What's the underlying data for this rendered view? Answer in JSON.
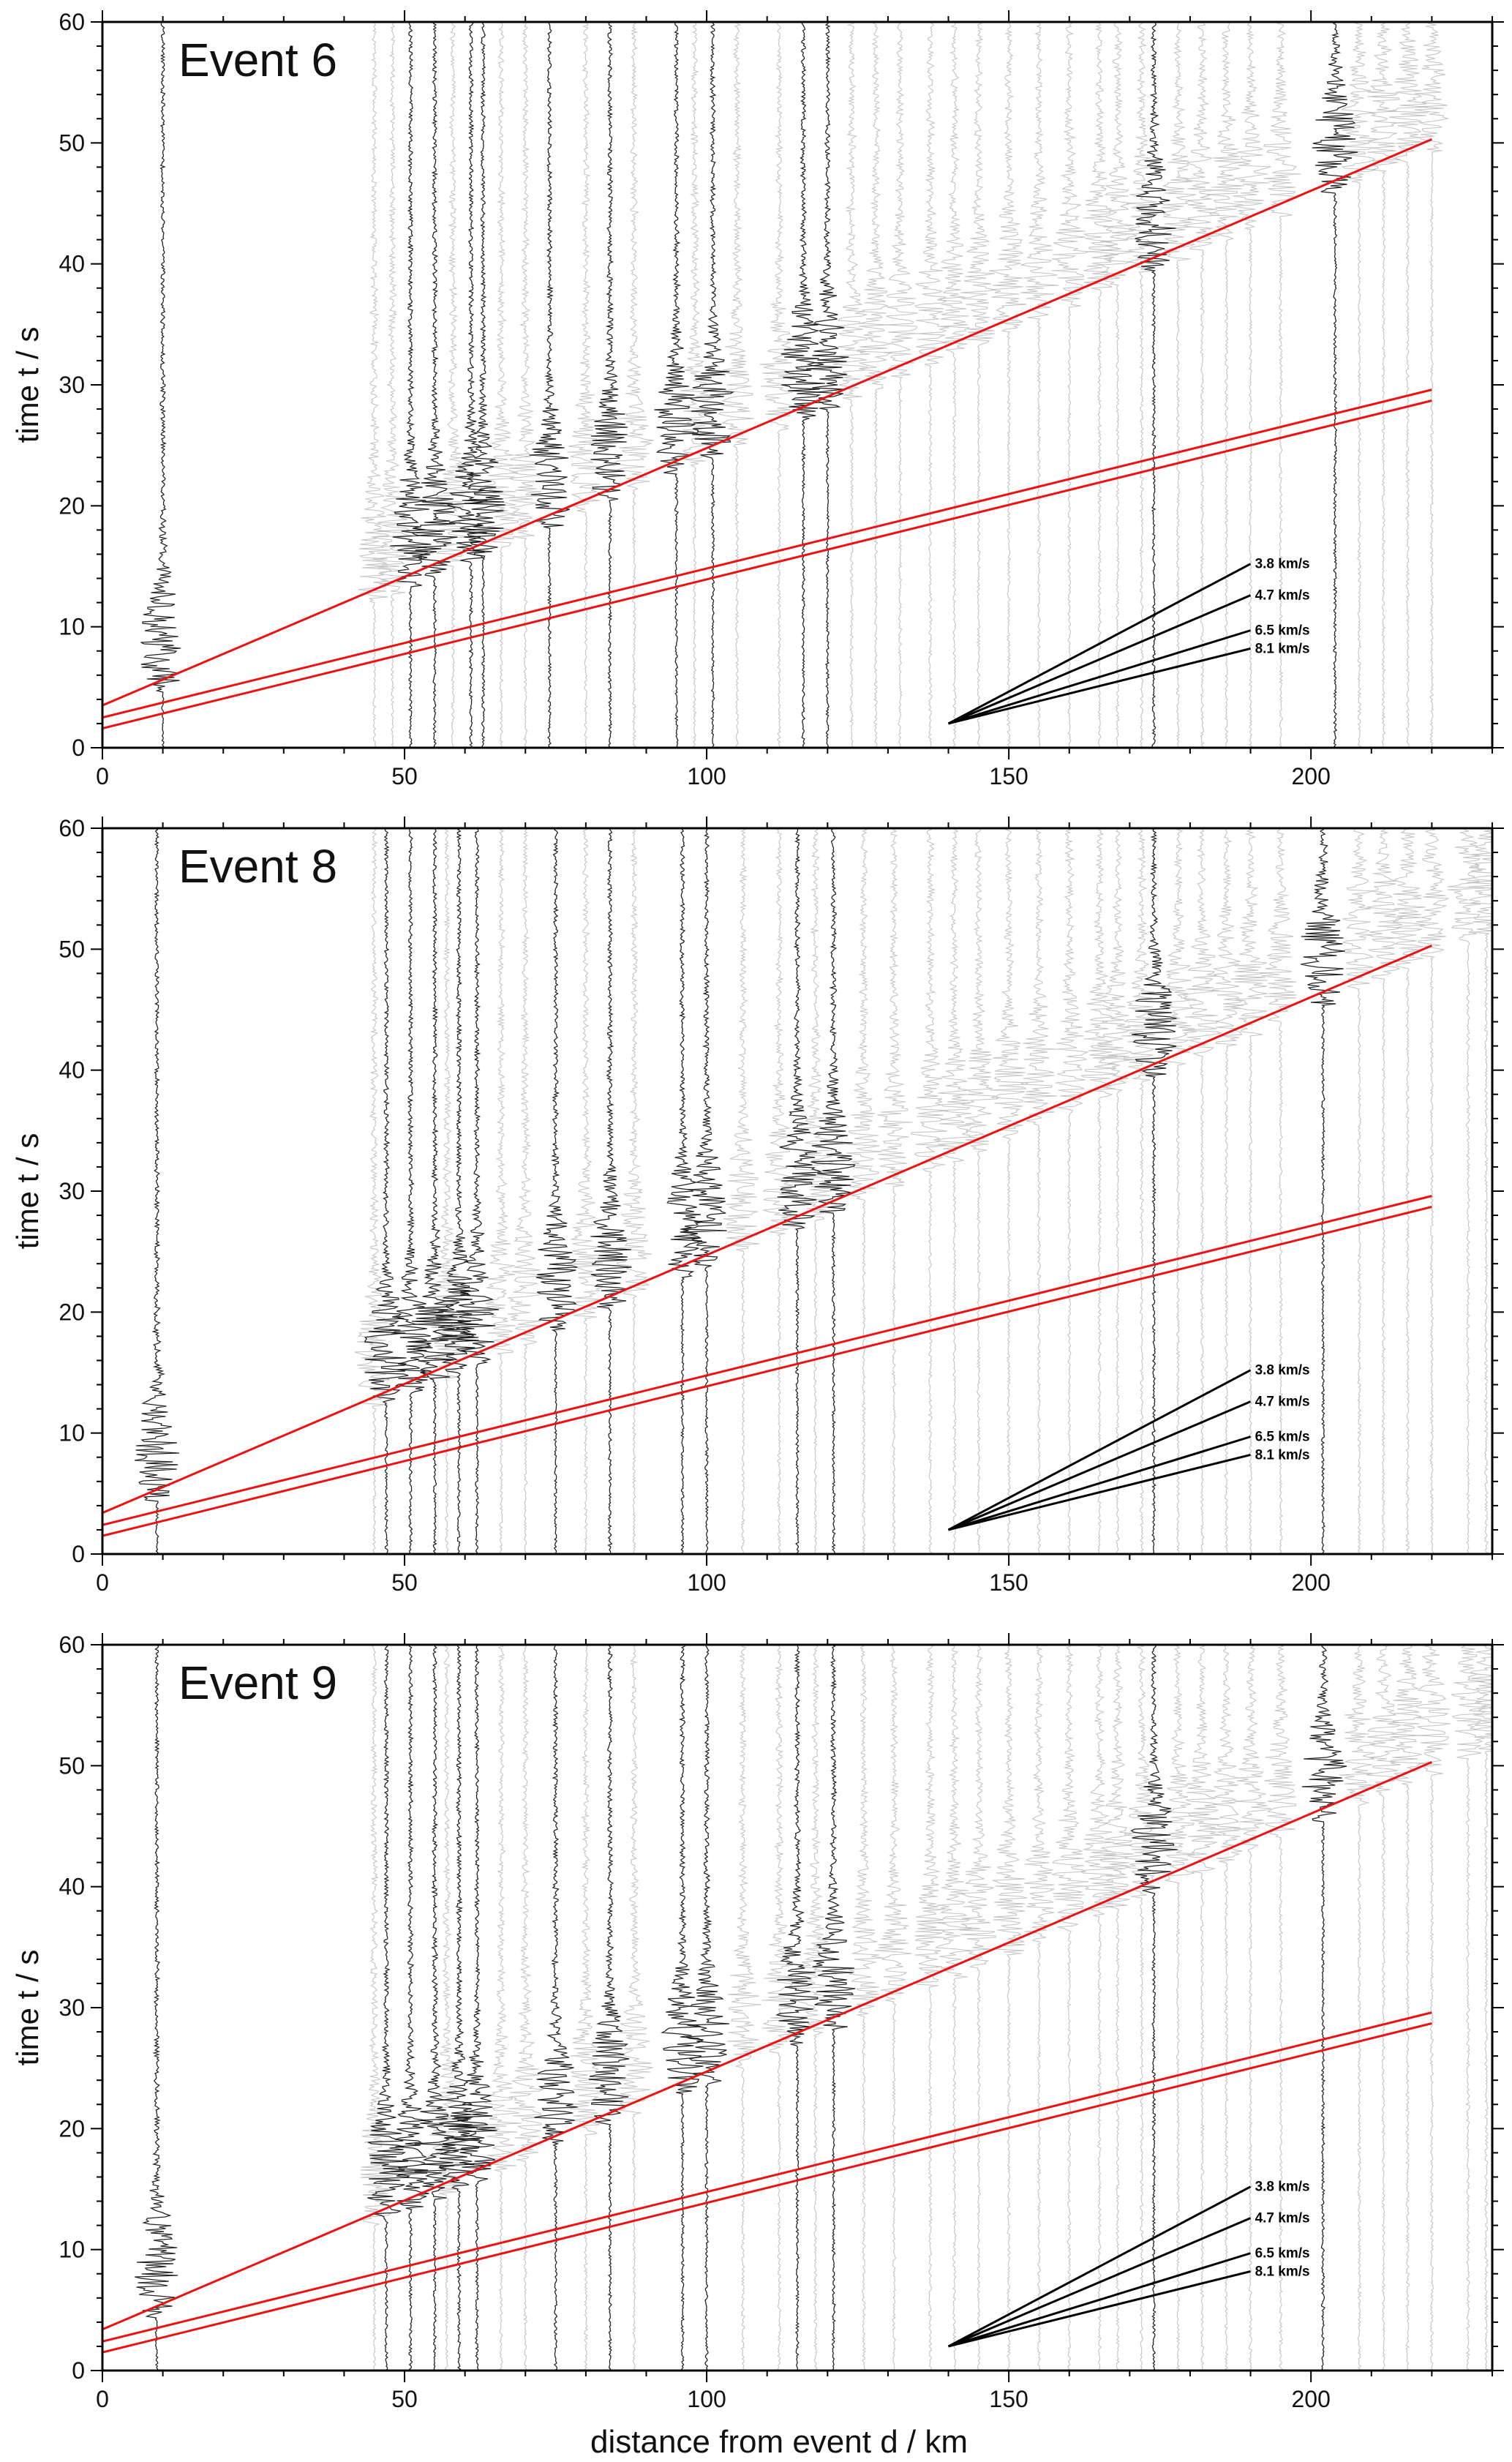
{
  "figure": {
    "x_axis_label": "distance from event d / km",
    "y_axis_label": "time t / s",
    "colors": {
      "red_line": "#ee1111",
      "trace_strong": "#111111",
      "trace_weak": "#bdbdbd",
      "velocity_line": "#000000"
    }
  },
  "chart_data": [
    {
      "type": "line",
      "title": "Event 6",
      "xlabel": "",
      "ylabel": "time t / s",
      "xlim": [
        0,
        230
      ],
      "ylim": [
        0,
        60
      ],
      "x_ticks": [
        "0",
        "50",
        "100",
        "150",
        "200"
      ],
      "y_ticks": [
        "0",
        "10",
        "20",
        "30",
        "40",
        "50",
        "60"
      ],
      "series": [
        {
          "x": [
            0,
            220
          ],
          "y": [
            3.5,
            50.3
          ]
        },
        {
          "x": [
            0,
            220
          ],
          "y": [
            2.5,
            29.6
          ]
        },
        {
          "x": [
            0,
            220
          ],
          "y": [
            1.6,
            28.7
          ]
        }
      ],
      "velocity_key": [
        {
          "label": "3.8 km/s",
          "x": [
            140,
            190
          ],
          "y": [
            2,
            15.2
          ]
        },
        {
          "label": "4.7 km/s",
          "x": [
            140,
            190
          ],
          "y": [
            2,
            12.6
          ]
        },
        {
          "label": "6.5 km/s",
          "x": [
            140,
            190
          ],
          "y": [
            2,
            9.7
          ]
        },
        {
          "label": "8.1 km/s",
          "x": [
            140,
            190
          ],
          "y": [
            2,
            8.2
          ]
        }
      ],
      "traces_strong": [
        10,
        51,
        55,
        61,
        63,
        74,
        84,
        95,
        101,
        116,
        120,
        174,
        204
      ],
      "traces_weak": [
        45,
        48,
        58,
        66,
        70,
        80,
        88,
        98,
        105,
        112,
        124,
        128,
        132,
        137,
        141,
        145,
        150,
        155,
        160,
        165,
        168,
        172,
        178,
        182,
        186,
        190,
        195,
        208,
        212,
        216,
        220
      ]
    },
    {
      "type": "line",
      "title": "Event 8",
      "xlabel": "",
      "ylabel": "time t / s",
      "xlim": [
        0,
        230
      ],
      "ylim": [
        0,
        60
      ],
      "x_ticks": [
        "0",
        "50",
        "100",
        "150",
        "200"
      ],
      "y_ticks": [
        "0",
        "10",
        "20",
        "30",
        "40",
        "50",
        "60"
      ],
      "series": [
        {
          "x": [
            0,
            220
          ],
          "y": [
            3.4,
            50.3
          ]
        },
        {
          "x": [
            0,
            220
          ],
          "y": [
            2.4,
            29.6
          ]
        },
        {
          "x": [
            0,
            220
          ],
          "y": [
            1.5,
            28.7
          ]
        }
      ],
      "velocity_key": [
        {
          "label": "3.8 km/s",
          "x": [
            140,
            190
          ],
          "y": [
            2,
            15.2
          ]
        },
        {
          "label": "4.7 km/s",
          "x": [
            140,
            190
          ],
          "y": [
            2,
            12.6
          ]
        },
        {
          "label": "6.5 km/s",
          "x": [
            140,
            190
          ],
          "y": [
            2,
            9.7
          ]
        },
        {
          "label": "8.1 km/s",
          "x": [
            140,
            190
          ],
          "y": [
            2,
            8.2
          ]
        }
      ],
      "traces_strong": [
        9,
        47,
        51,
        55,
        59,
        62,
        75,
        84,
        96,
        100,
        115,
        121,
        174,
        202
      ],
      "traces_weak": [
        45,
        57,
        66,
        70,
        80,
        88,
        106,
        112,
        118,
        126,
        131,
        137,
        141,
        145,
        150,
        155,
        160,
        165,
        168,
        172,
        178,
        182,
        186,
        190,
        195,
        208,
        212,
        216,
        220,
        226,
        229
      ]
    },
    {
      "type": "line",
      "title": "Event 9",
      "xlabel": "distance from event d / km",
      "ylabel": "time t / s",
      "xlim": [
        0,
        230
      ],
      "ylim": [
        0,
        60
      ],
      "x_ticks": [
        "0",
        "50",
        "100",
        "150",
        "200"
      ],
      "y_ticks": [
        "0",
        "10",
        "20",
        "30",
        "40",
        "50",
        "60"
      ],
      "series": [
        {
          "x": [
            0,
            220
          ],
          "y": [
            3.4,
            50.3
          ]
        },
        {
          "x": [
            0,
            220
          ],
          "y": [
            2.4,
            29.6
          ]
        },
        {
          "x": [
            0,
            220
          ],
          "y": [
            1.5,
            28.7
          ]
        }
      ],
      "velocity_key": [
        {
          "label": "3.8 km/s",
          "x": [
            140,
            190
          ],
          "y": [
            2,
            15.2
          ]
        },
        {
          "label": "4.7 km/s",
          "x": [
            140,
            190
          ],
          "y": [
            2,
            12.6
          ]
        },
        {
          "label": "6.5 km/s",
          "x": [
            140,
            190
          ],
          "y": [
            2,
            9.7
          ]
        },
        {
          "label": "8.1 km/s",
          "x": [
            140,
            190
          ],
          "y": [
            2,
            8.2
          ]
        }
      ],
      "traces_strong": [
        9,
        47,
        51,
        55,
        59,
        62,
        75,
        84,
        96,
        100,
        115,
        121,
        174,
        202
      ],
      "traces_weak": [
        45,
        57,
        66,
        70,
        80,
        88,
        106,
        112,
        118,
        126,
        131,
        137,
        141,
        145,
        150,
        155,
        160,
        165,
        168,
        172,
        178,
        182,
        186,
        190,
        195,
        208,
        212,
        216,
        220,
        226,
        229
      ]
    }
  ]
}
